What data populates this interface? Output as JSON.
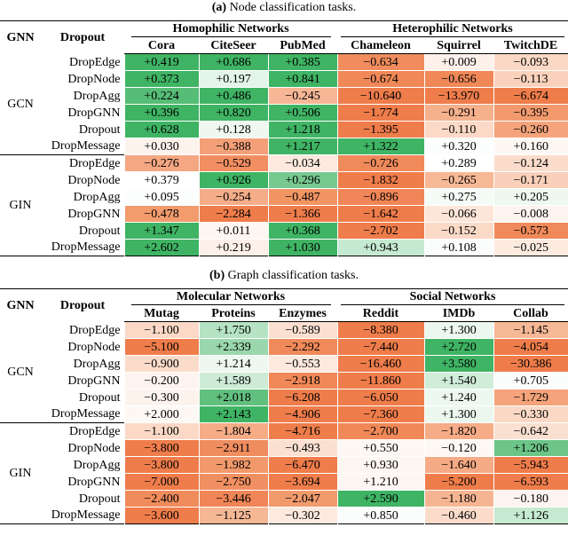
{
  "tables": [
    {
      "id": "a",
      "caption_label": "(a)",
      "caption_text": " Node classification tasks.",
      "gnn_header": "GNN",
      "dropout_header": "Dropout",
      "groups": [
        "Homophilic Networks",
        "Heterophilic Networks"
      ],
      "columns": [
        "Cora",
        "CiteSeer",
        "PubMed",
        "Chameleon",
        "Squirrel",
        "TwitchDE"
      ],
      "blocks": [
        {
          "gnn": "GCN",
          "rows": [
            {
              "dropout": "DropEdge",
              "values": [
                "+0.419",
                "+0.686",
                "+0.385",
                "−0.634",
                "+0.009",
                "−0.093"
              ]
            },
            {
              "dropout": "DropNode",
              "values": [
                "+0.373",
                "+0.197",
                "+0.841",
                "−0.674",
                "−0.656",
                "−0.113"
              ]
            },
            {
              "dropout": "DropAgg",
              "values": [
                "+0.224",
                "+0.486",
                "−0.245",
                "−10.640",
                "−13.970",
                "−6.674"
              ]
            },
            {
              "dropout": "DropGNN",
              "values": [
                "+0.396",
                "+0.820",
                "+0.506",
                "−1.774",
                "−0.291",
                "−0.395"
              ]
            },
            {
              "dropout": "Dropout",
              "values": [
                "+0.628",
                "+0.128",
                "+1.218",
                "−1.395",
                "−0.110",
                "−0.260"
              ]
            },
            {
              "dropout": "DropMessage",
              "values": [
                "+0.030",
                "−0.388",
                "+1.217",
                "+1.322",
                "+0.320",
                "+0.160"
              ]
            }
          ]
        },
        {
          "gnn": "GIN",
          "rows": [
            {
              "dropout": "DropEdge",
              "values": [
                "−0.276",
                "−0.529",
                "−0.034",
                "−0.726",
                "+0.289",
                "−0.124"
              ]
            },
            {
              "dropout": "DropNode",
              "values": [
                "+0.379",
                "+0.926",
                "+0.296",
                "−1.832",
                "−0.265",
                "−0.171"
              ]
            },
            {
              "dropout": "DropAgg",
              "values": [
                "+0.095",
                "−0.254",
                "−0.487",
                "−0.896",
                "+0.275",
                "+0.205"
              ]
            },
            {
              "dropout": "DropGNN",
              "values": [
                "−0.478",
                "−2.284",
                "−1.366",
                "−1.642",
                "−0.066",
                "−0.008"
              ]
            },
            {
              "dropout": "Dropout",
              "values": [
                "+1.347",
                "+0.011",
                "+0.368",
                "−2.702",
                "−0.152",
                "−0.573"
              ]
            },
            {
              "dropout": "DropMessage",
              "values": [
                "+2.602",
                "+0.219",
                "+1.030",
                "+0.943",
                "+0.108",
                "−0.025"
              ]
            }
          ]
        }
      ],
      "cell_colors": [
        [
          "#3fb464",
          "#3fb464",
          "#3fb464",
          "#f08c5e",
          "#fdf1ea",
          "#fbd8c5"
        ],
        [
          "#3fb464",
          "#e3f4e8",
          "#3fb464",
          "#f08858",
          "#f08858",
          "#fad2bc"
        ],
        [
          "#56bd76",
          "#3fb464",
          "#f7b796",
          "#ef7d4b",
          "#ef7d4b",
          "#ef7d4b"
        ],
        [
          "#3fb464",
          "#3fb464",
          "#3fb464",
          "#ef7d4b",
          "#f5b08c",
          "#f29a6d"
        ],
        [
          "#3fb464",
          "#eef8f1",
          "#3fb464",
          "#ef7d4b",
          "#fbd9c6",
          "#f4a37b"
        ],
        [
          "#fdf3ed",
          "#f3a079",
          "#3fb464",
          "#3fb464",
          "#fbfefc",
          "#fdf8f4"
        ],
        [
          "#f4a782",
          "#f28e61",
          "#fde9de",
          "#f08a5a",
          "#ffffff",
          "#fbdccb"
        ],
        [
          "#ffffff",
          "#3fb464",
          "#77c990",
          "#ef7d4b",
          "#f7b896",
          "#fad0ba"
        ],
        [
          "#fbfefc",
          "#f5ad89",
          "#f19563",
          "#f08557",
          "#f5fbf6",
          "#eef8f1"
        ],
        [
          "#f29b6d",
          "#ef7d4b",
          "#ef7d4b",
          "#ef7d4b",
          "#fde6d9",
          "#fdf4ef"
        ],
        [
          "#3fb464",
          "#fdf6f1",
          "#3fb464",
          "#ef7d4b",
          "#fad9c7",
          "#f08a5a"
        ],
        [
          "#3fb464",
          "#fdf0e8",
          "#3fb464",
          "#c6e9d1",
          "#fbfdfc",
          "#fdebe0"
        ]
      ]
    },
    {
      "id": "b",
      "caption_label": "(b)",
      "caption_text": " Graph classification tasks.",
      "gnn_header": "GNN",
      "dropout_header": "Dropout",
      "groups": [
        "Molecular Networks",
        "Social Networks"
      ],
      "columns": [
        "Mutag",
        "Proteins",
        "Enzymes",
        "Reddit",
        "IMDb",
        "Collab"
      ],
      "blocks": [
        {
          "gnn": "GCN",
          "rows": [
            {
              "dropout": "DropEdge",
              "values": [
                "−1.100",
                "+1.750",
                "−0.589",
                "−8.380",
                "+1.300",
                "−1.145"
              ]
            },
            {
              "dropout": "DropNode",
              "values": [
                "−5.100",
                "+2.339",
                "−2.292",
                "−7.440",
                "+2.720",
                "−4.054"
              ]
            },
            {
              "dropout": "DropAgg",
              "values": [
                "−0.900",
                "+1.214",
                "−0.553",
                "−16.460",
                "+3.580",
                "−30.386"
              ]
            },
            {
              "dropout": "DropGNN",
              "values": [
                "−0.200",
                "+1.589",
                "−2.918",
                "−11.860",
                "+1.540",
                "+0.705"
              ]
            },
            {
              "dropout": "Dropout",
              "values": [
                "−0.300",
                "+2.018",
                "−6.208",
                "−6.050",
                "+1.240",
                "−1.729"
              ]
            },
            {
              "dropout": "DropMessage",
              "values": [
                "+2.000",
                "+2.143",
                "−4.906",
                "−7.360",
                "+1.300",
                "−0.330"
              ]
            }
          ]
        },
        {
          "gnn": "GIN",
          "rows": [
            {
              "dropout": "DropEdge",
              "values": [
                "−1.100",
                "−1.804",
                "−4.716",
                "−2.700",
                "−1.820",
                "−0.642"
              ]
            },
            {
              "dropout": "DropNode",
              "values": [
                "−3.800",
                "−2.911",
                "−0.493",
                "+0.550",
                "−0.120",
                "+1.206"
              ]
            },
            {
              "dropout": "DropAgg",
              "values": [
                "−3.800",
                "−1.982",
                "−6.470",
                "+0.930",
                "−1.640",
                "−5.943"
              ]
            },
            {
              "dropout": "DropGNN",
              "values": [
                "−7.000",
                "−2.750",
                "−3.694",
                "+1.210",
                "−5.200",
                "−6.593"
              ]
            },
            {
              "dropout": "Dropout",
              "values": [
                "−2.400",
                "−3.446",
                "−2.047",
                "+2.590",
                "−1.180",
                "−0.180"
              ]
            },
            {
              "dropout": "DropMessage",
              "values": [
                "−3.600",
                "−1.125",
                "−0.302",
                "+0.850",
                "−0.460",
                "+1.126"
              ]
            }
          ]
        }
      ],
      "cell_colors": [
        [
          "#fbd9c6",
          "#b5e3c3",
          "#fbe0d1",
          "#ef7d4b",
          "#ecf7ef",
          "#f7b896"
        ],
        [
          "#ef7d4b",
          "#9ad7ad",
          "#f08a5a",
          "#ef7d4b",
          "#3fb464",
          "#ef7d4b"
        ],
        [
          "#fbdccb",
          "#eef8f1",
          "#fde9de",
          "#ef7d4b",
          "#3fb464",
          "#ef7d4b"
        ],
        [
          "#fdf4ef",
          "#cdebd6",
          "#f08857",
          "#ef7d4b",
          "#cfedd8",
          "#fafdfb"
        ],
        [
          "#fdf3ed",
          "#62c07f",
          "#ef7d4b",
          "#ef7d4b",
          "#edf8f0",
          "#f4a37b"
        ],
        [
          "#fdf8f4",
          "#3fb464",
          "#ef7d4b",
          "#ef7d4b",
          "#ecf7ef",
          "#fbd8c5"
        ],
        [
          "#fbd9c6",
          "#f5ac87",
          "#ef7d4b",
          "#f08858",
          "#f5ac87",
          "#fae0d1"
        ],
        [
          "#ef7d4b",
          "#f08d5f",
          "#fbe0d1",
          "#fdf8f4",
          "#fdf8f4",
          "#6cc587"
        ],
        [
          "#ef7d4b",
          "#f2996b",
          "#ef7d4b",
          "#fdf6f1",
          "#f5ab86",
          "#ef7d4b"
        ],
        [
          "#ef7d4b",
          "#f08f61",
          "#ef7d4b",
          "#fdf6f2",
          "#ef7d4b",
          "#ef7d4b"
        ],
        [
          "#f08b5c",
          "#f08557",
          "#f19b6d",
          "#3fb464",
          "#f6b592",
          "#fdf4ef"
        ],
        [
          "#ef7d4b",
          "#f6b795",
          "#fde9de",
          "#fbfdfc",
          "#fbdccb",
          "#c6e9d1"
        ]
      ]
    }
  ]
}
